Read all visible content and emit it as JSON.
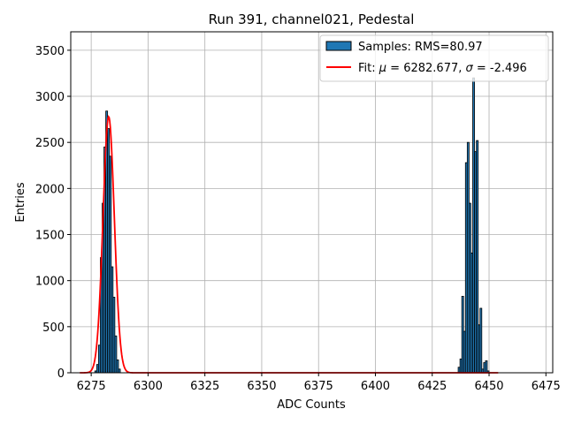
{
  "chart_data": {
    "type": "bar",
    "title": "Run 391, channel021, Pedestal",
    "xlabel": "ADC Counts",
    "ylabel": "Entries",
    "xlim": [
      6266,
      6478
    ],
    "ylim": [
      0,
      3700
    ],
    "x_ticks": [
      6275,
      6300,
      6325,
      6350,
      6375,
      6400,
      6425,
      6450,
      6475
    ],
    "y_ticks": [
      0,
      500,
      1000,
      1500,
      2000,
      2500,
      3000,
      3500
    ],
    "grid": true,
    "legend_position": "top-right",
    "histogram": {
      "name": "Samples: RMS=80.97",
      "color": "#1f77b4",
      "edgecolor": "#000000",
      "bin_width": 0.8,
      "bins": [
        {
          "x": 6277.0,
          "y": 20
        },
        {
          "x": 6277.8,
          "y": 90
        },
        {
          "x": 6278.6,
          "y": 300
        },
        {
          "x": 6279.4,
          "y": 1250
        },
        {
          "x": 6280.2,
          "y": 1840
        },
        {
          "x": 6281.0,
          "y": 2450
        },
        {
          "x": 6281.8,
          "y": 2840
        },
        {
          "x": 6282.6,
          "y": 2650
        },
        {
          "x": 6283.4,
          "y": 2350
        },
        {
          "x": 6284.2,
          "y": 1150
        },
        {
          "x": 6285.0,
          "y": 820
        },
        {
          "x": 6285.8,
          "y": 400
        },
        {
          "x": 6286.6,
          "y": 140
        },
        {
          "x": 6287.4,
          "y": 40
        },
        {
          "x": 6436.8,
          "y": 60
        },
        {
          "x": 6437.6,
          "y": 150
        },
        {
          "x": 6438.4,
          "y": 830
        },
        {
          "x": 6439.2,
          "y": 450
        },
        {
          "x": 6440.0,
          "y": 2280
        },
        {
          "x": 6440.8,
          "y": 2500
        },
        {
          "x": 6441.6,
          "y": 1840
        },
        {
          "x": 6442.4,
          "y": 1300
        },
        {
          "x": 6443.2,
          "y": 3200
        },
        {
          "x": 6444.0,
          "y": 2400
        },
        {
          "x": 6444.8,
          "y": 2520
        },
        {
          "x": 6445.6,
          "y": 520
        },
        {
          "x": 6446.4,
          "y": 700
        },
        {
          "x": 6447.2,
          "y": 40
        },
        {
          "x": 6448.0,
          "y": 110
        },
        {
          "x": 6448.8,
          "y": 130
        },
        {
          "x": 6449.6,
          "y": 20
        }
      ]
    },
    "fit": {
      "name": "Fit: $\\mu$ = 6282.677, $\\sigma$ = -2.496",
      "legend_prefix": "Fit: ",
      "legend_mu_symbol": "μ",
      "legend_mu_value": " = 6282.677, ",
      "legend_sigma_symbol": "σ",
      "legend_sigma_value": " = -2.496",
      "color": "#ff0000",
      "mu": 6282.677,
      "sigma": -2.496,
      "amplitude": 2780,
      "x_range": [
        6270,
        6454
      ]
    }
  }
}
